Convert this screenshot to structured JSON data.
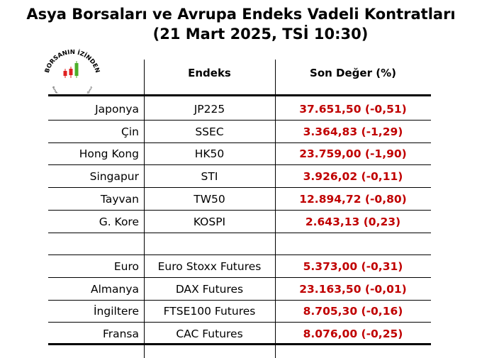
{
  "title": {
    "line1": "Asya Borsaları ve Avrupa Endeks Vadeli Kontratları",
    "line2": "(21 Mart 2025, TSİ 10:30)"
  },
  "logo": {
    "top_text": "BORSANIN İZİNDEN",
    "bottom_text": "Borsacı doğmak yolundaki yolculuğunuz"
  },
  "table": {
    "headers": [
      "",
      "Endeks",
      "Son Değer (%)"
    ],
    "rows": [
      {
        "country": "Japonya",
        "index": "JP225",
        "value": "37.651,50 (-0,51)"
      },
      {
        "country": "Çin",
        "index": "SSEC",
        "value": "3.364,83 (-1,29)"
      },
      {
        "country": "Hong Kong",
        "index": "HK50",
        "value": "23.759,00 (-1,90)"
      },
      {
        "country": "Singapur",
        "index": "STI",
        "value": "3.926,02 (-0,11)"
      },
      {
        "country": "Tayvan",
        "index": "TW50",
        "value": "12.894,72 (-0,80)"
      },
      {
        "country": "G. Kore",
        "index": "KOSPI",
        "value": "2.643,13 (0,23)"
      },
      {
        "country": "",
        "index": "",
        "value": ""
      },
      {
        "country": "Euro",
        "index": "Euro Stoxx Futures",
        "value": "5.373,00 (-0,31)"
      },
      {
        "country": "Almanya",
        "index": "DAX Futures",
        "value": "23.163,50 (-0,01)"
      },
      {
        "country": "İngiltere",
        "index": "FTSE100 Futures",
        "value": "8.705,30 (-0,16)"
      },
      {
        "country": "Fransa",
        "index": "CAC Futures",
        "value": "8.076,00 (-0,25)"
      }
    ]
  },
  "colors": {
    "value_red": "#c00000",
    "logo_green": "#4caf2a",
    "logo_red": "#e02020"
  }
}
